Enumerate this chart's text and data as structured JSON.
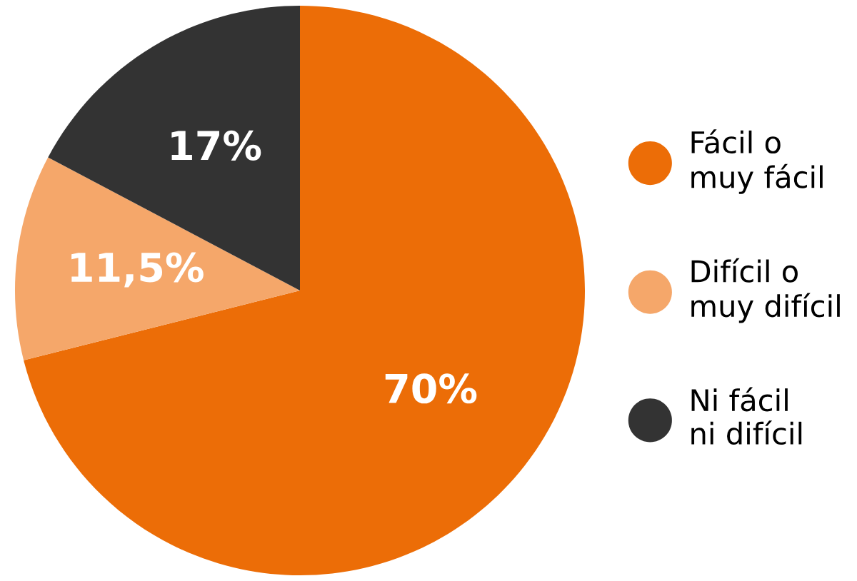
{
  "chart_data": {
    "type": "pie",
    "categories": [
      "Fácil o\nmuy fácil",
      "Difícil o\nmuy difícil",
      "Ni fácil\nni difícil"
    ],
    "values": [
      70,
      11.5,
      17
    ],
    "colors": [
      "#ec6d07",
      "#f5a76a",
      "#333333"
    ],
    "value_labels": [
      "70%",
      "11,5%",
      "17%"
    ],
    "legend": "right"
  }
}
